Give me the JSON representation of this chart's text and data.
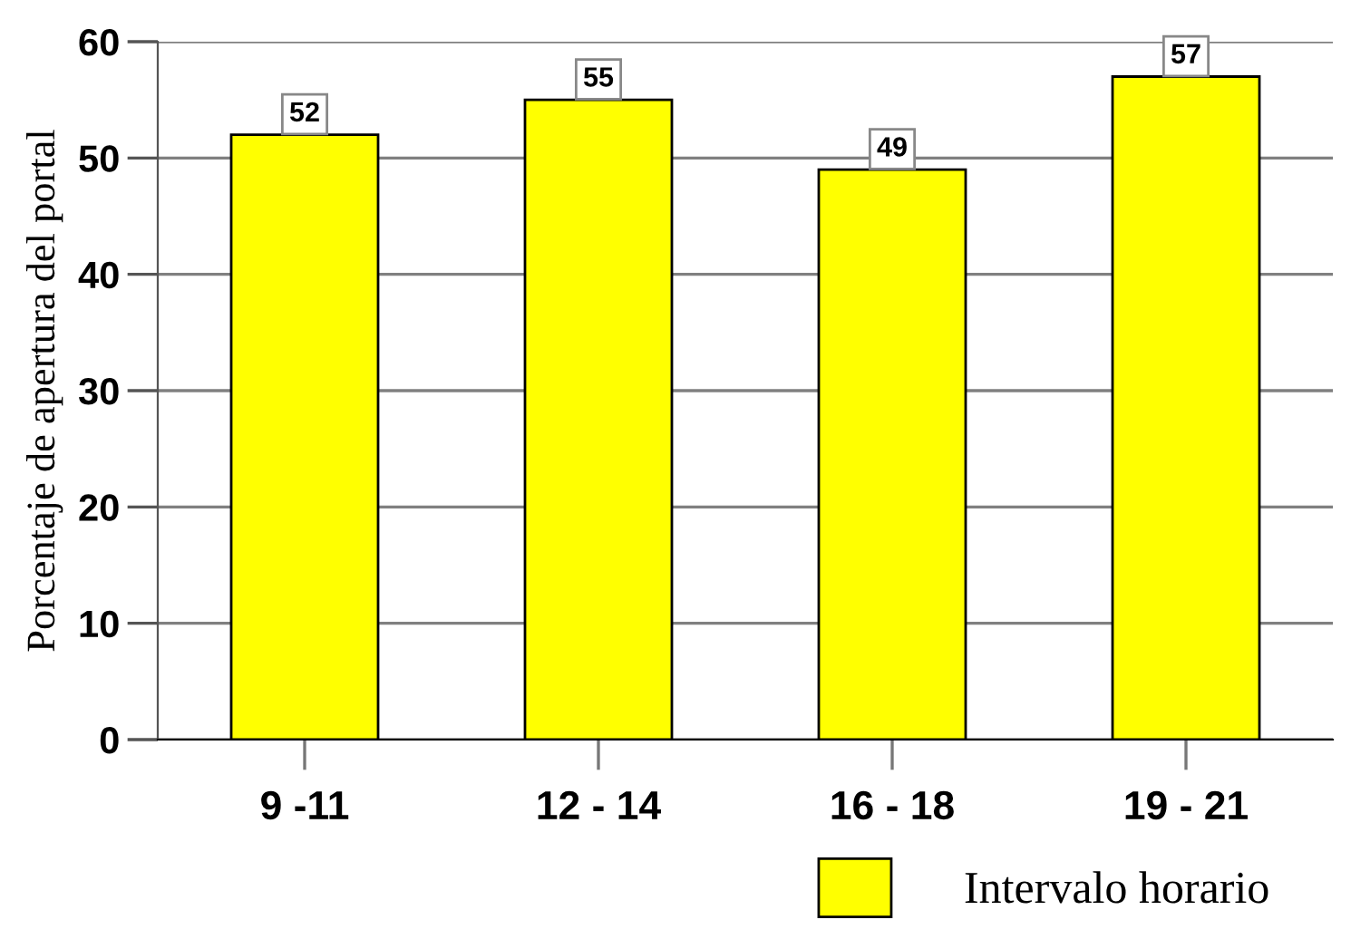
{
  "chart_data": {
    "type": "bar",
    "ylabel": "Porcentaje de apertura del portal",
    "categories": [
      "9 -11",
      "12 - 14",
      "16 - 18",
      "19 - 21"
    ],
    "series": [
      {
        "name": "Intervalo horario",
        "color": "#ffff00",
        "values": [
          52,
          55,
          49,
          57
        ]
      }
    ],
    "ylim": [
      0,
      60
    ],
    "yticks": [
      0,
      10,
      20,
      30,
      40,
      50,
      60
    ],
    "grid": "y",
    "legend": "bottom right",
    "data_labels": true
  }
}
